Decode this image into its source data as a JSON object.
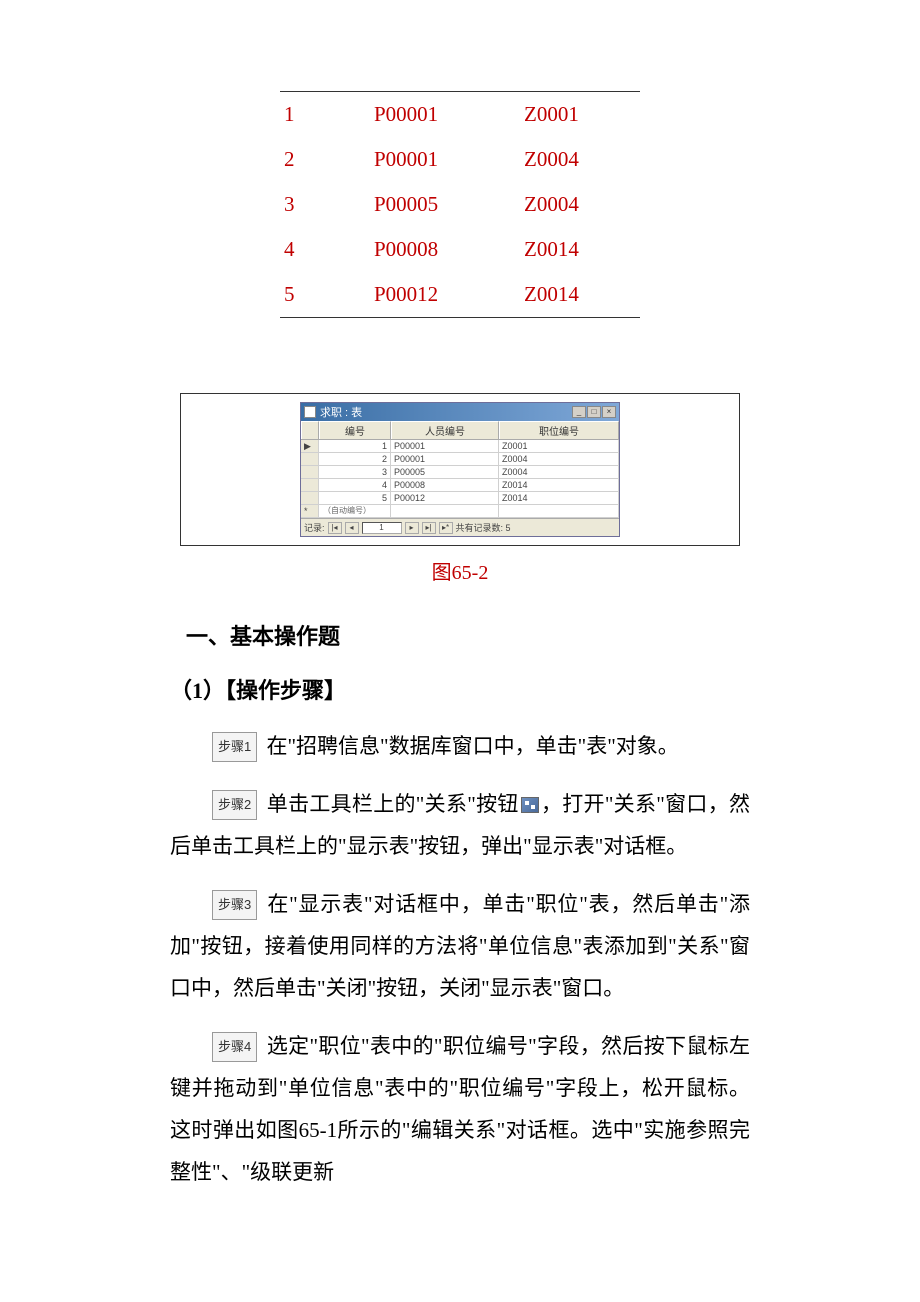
{
  "data_table": {
    "rows": [
      {
        "c1": "1",
        "c2": "P00001",
        "c3": "Z0001"
      },
      {
        "c1": "2",
        "c2": "P00001",
        "c3": "Z0004"
      },
      {
        "c1": "3",
        "c2": "P00005",
        "c3": "Z0004"
      },
      {
        "c1": "4",
        "c2": "P00008",
        "c3": "Z0014"
      },
      {
        "c1": "5",
        "c2": "P00012",
        "c3": "Z0014"
      }
    ],
    "text_color": "#c00000",
    "font_family": "Times New Roman",
    "font_size_pt": 16
  },
  "app_window": {
    "title": "求职 : 表",
    "columns": [
      "编号",
      "人员编号",
      "职位编号"
    ],
    "rows": [
      {
        "c1": "1",
        "c2": "P00001",
        "c3": "Z0001"
      },
      {
        "c1": "2",
        "c2": "P00001",
        "c3": "Z0004"
      },
      {
        "c1": "3",
        "c2": "P00005",
        "c3": "Z0004"
      },
      {
        "c1": "4",
        "c2": "P00008",
        "c3": "Z0014"
      },
      {
        "c1": "5",
        "c2": "P00012",
        "c3": "Z0014"
      }
    ],
    "new_row_placeholder": "（自动编号）",
    "nav_label": "记录:",
    "nav_value": "1",
    "nav_total_label": "共有记录数: 5",
    "titlebar_bg_start": "#3a6ea5",
    "titlebar_bg_end": "#7fa8d8",
    "window_bg": "#ece9d8"
  },
  "figure_caption": "图65-2",
  "section_title": "一、基本操作题",
  "subsection_title": "（1）【操作步骤】",
  "steps": {
    "label1": "步骤1",
    "text1a": "在\"招聘信息\"数据库窗口中，单击\"表\"对象。",
    "label2": "步骤2",
    "text2a": "单击工具栏上的\"关系\"按钮",
    "text2b": "，打开\"关系\"窗口，然后单击工具栏上的\"显示表\"按钮，弹出\"显示表\"对话框。",
    "label3": "步骤3",
    "text3a": "在\"显示表\"对话框中，单击\"职位\"表，然后单击\"添加\"按钮，接着使用同样的方法将\"单位信息\"表添加到\"关系\"窗口中，然后单击\"关闭\"按钮，关闭\"显示表\"窗口。",
    "label4": "步骤4",
    "text4a": "选定\"职位\"表中的\"职位编号\"字段，然后按下鼠标左键并拖动到\"单位信息\"表中的\"职位编号\"字段上，松开鼠标。这时弹出如图65-1所示的\"编辑关系\"对话框。选中\"实施参照完整性\"、\"级联更新"
  },
  "colors": {
    "accent_red": "#c00000",
    "text_black": "#000000",
    "border_gray": "#333333"
  }
}
